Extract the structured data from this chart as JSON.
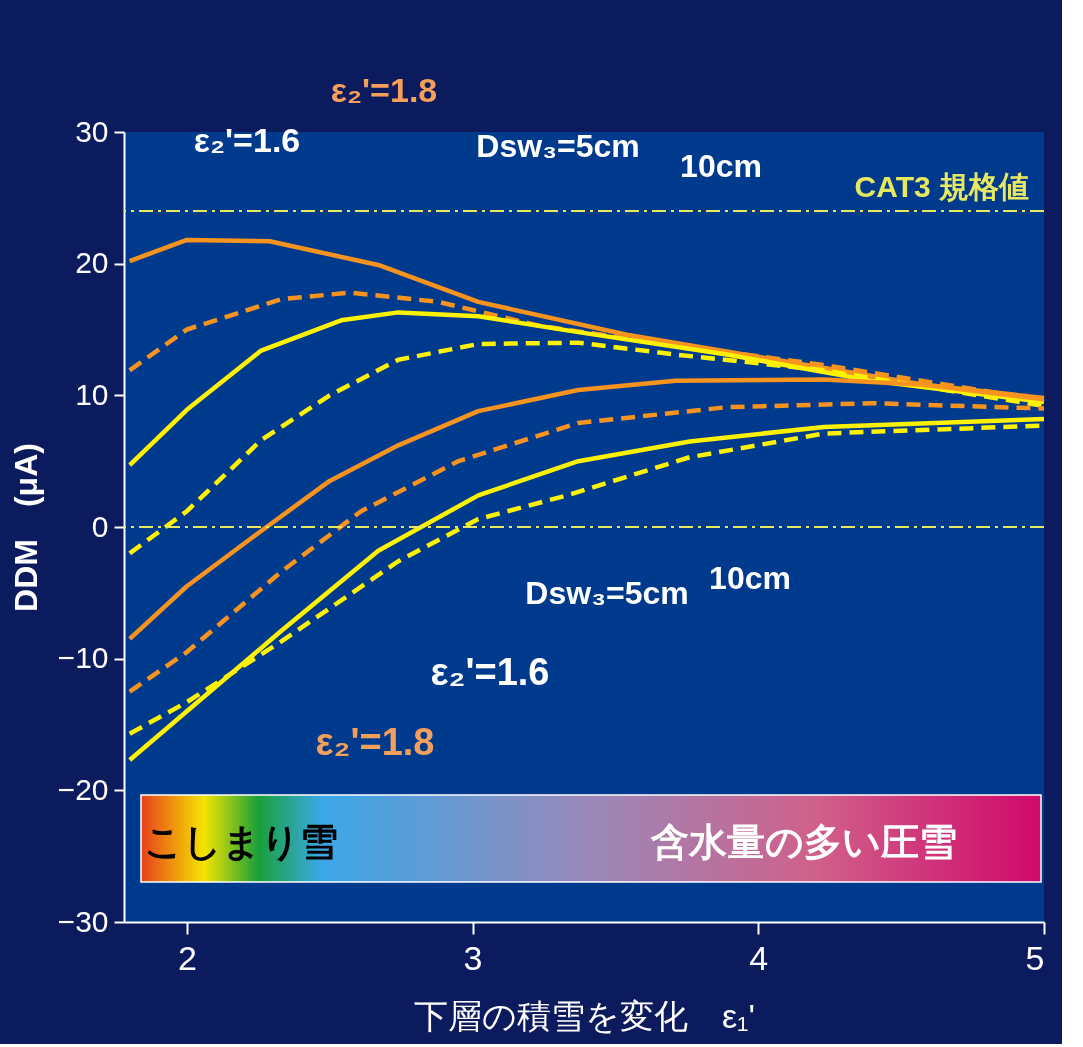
{
  "chart_data": {
    "type": "line",
    "xlabel": "下層の積雪を変化　ε₁'",
    "ylabel": "DDM　(μA)",
    "xlim": [
      1.78,
      5.0
    ],
    "ylim": [
      -30,
      30
    ],
    "xticks": [
      2,
      3,
      4,
      5
    ],
    "yticks": [
      -30,
      -20,
      -10,
      0,
      10,
      20,
      30
    ],
    "marker": "none",
    "series": [
      {
        "color": "#f7931e",
        "line_style": "solid",
        "x": [
          1.8,
          2.0,
          2.29,
          2.67,
          3.02,
          3.54,
          4.06,
          4.58,
          5.0
        ],
        "values": [
          20.2,
          21.8,
          21.7,
          19.9,
          17.1,
          14.6,
          12.7,
          10.8,
          9.8
        ]
      },
      {
        "color": "#f7931e",
        "line_style": "dashed",
        "x": [
          1.8,
          2.0,
          2.33,
          2.57,
          2.88,
          3.23,
          3.71,
          4.23,
          5.0
        ],
        "values": [
          11.9,
          15.0,
          17.3,
          17.8,
          17.1,
          15.3,
          13.8,
          12.3,
          9.6
        ]
      },
      {
        "color": "#fff200",
        "line_style": "solid",
        "x": [
          1.8,
          2.0,
          2.26,
          2.54,
          2.74,
          3.02,
          3.37,
          3.89,
          4.4,
          5.0
        ],
        "values": [
          4.7,
          8.9,
          13.4,
          15.7,
          16.3,
          16.0,
          14.8,
          13.1,
          11.1,
          9.5
        ]
      },
      {
        "color": "#fff200",
        "line_style": "dashed",
        "x": [
          1.8,
          2.0,
          2.26,
          2.5,
          2.74,
          3.02,
          3.37,
          3.71,
          4.23,
          5.0
        ],
        "values": [
          -2.0,
          1.2,
          6.6,
          10.0,
          12.7,
          13.9,
          14.0,
          13.1,
          11.9,
          9.2
        ]
      },
      {
        "color": "#f7931e",
        "line_style": "solid",
        "x": [
          1.8,
          2.0,
          2.26,
          2.5,
          2.74,
          3.02,
          3.37,
          3.71,
          4.23,
          4.58,
          5.0
        ],
        "values": [
          -8.5,
          -4.5,
          -0.3,
          3.5,
          6.2,
          8.8,
          10.4,
          11.1,
          11.2,
          10.8,
          9.7
        ]
      },
      {
        "color": "#f7931e",
        "line_style": "dashed",
        "x": [
          1.8,
          2.0,
          2.33,
          2.61,
          2.95,
          3.37,
          3.89,
          4.4,
          5.0
        ],
        "values": [
          -12.5,
          -9.5,
          -3.4,
          1.2,
          5.0,
          7.9,
          9.1,
          9.4,
          9.0
        ]
      },
      {
        "color": "#fff200",
        "line_style": "solid",
        "x": [
          1.8,
          2.0,
          2.33,
          2.67,
          3.02,
          3.37,
          3.76,
          4.23,
          5.0
        ],
        "values": [
          -17.7,
          -14.0,
          -7.9,
          -1.8,
          2.4,
          5.0,
          6.5,
          7.6,
          8.2
        ]
      },
      {
        "color": "#fff200",
        "line_style": "dashed",
        "x": [
          1.8,
          2.0,
          2.33,
          2.74,
          3.02,
          3.33,
          3.76,
          4.23,
          5.0
        ],
        "values": [
          -15.7,
          -13.3,
          -8.7,
          -2.6,
          0.6,
          2.4,
          5.3,
          7.1,
          7.7
        ]
      }
    ],
    "ref_lines": [
      {
        "axis": "y",
        "value": 24,
        "label": "CAT3 規格値",
        "color": "#e8e860",
        "line_style": "dashdot"
      },
      {
        "axis": "y",
        "value": 0,
        "label": null,
        "color": "#e8e860",
        "line_style": "dashdot"
      }
    ],
    "annotations": [
      "ε₂'=1.8",
      "ε₂'=1.6",
      "Dsw₃=5cm",
      "10cm",
      "10cm",
      "Dsw₃=5cm",
      "ε₂'=1.6",
      "ε₂'=1.8",
      "こしまり雪",
      "含水量の多い圧雪"
    ]
  }
}
